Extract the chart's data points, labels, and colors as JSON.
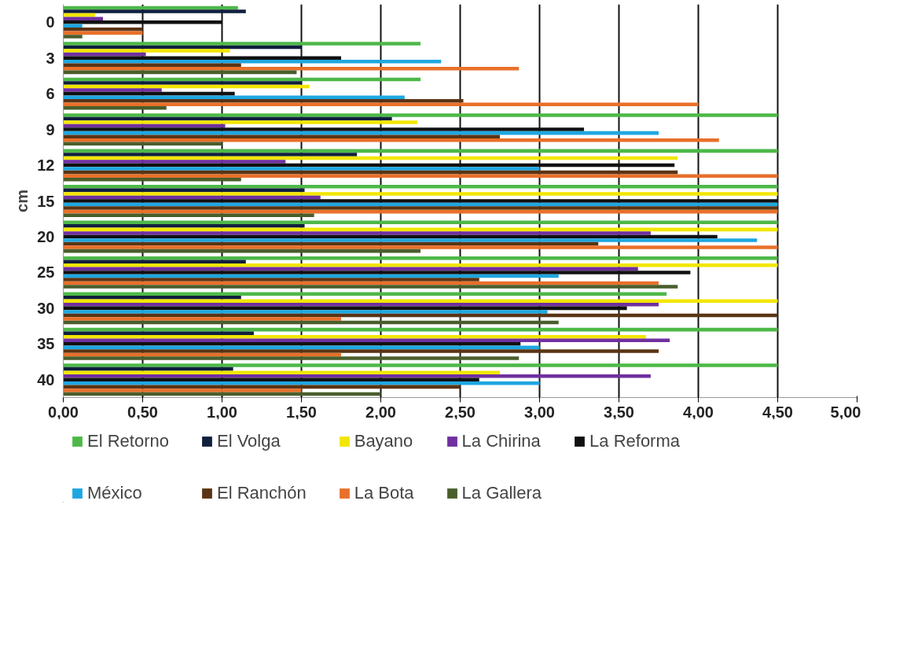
{
  "chart_data": {
    "type": "bar",
    "orientation": "horizontal",
    "ylabel": "cm",
    "categories": [
      "0",
      "3",
      "6",
      "9",
      "12",
      "15",
      "20",
      "25",
      "30",
      "35",
      "40"
    ],
    "series": [
      {
        "name": "El Retorno",
        "color": "#4db848",
        "values": [
          1.1,
          2.25,
          2.25,
          4.5,
          4.5,
          4.5,
          4.5,
          4.5,
          3.8,
          4.5,
          4.5
        ]
      },
      {
        "name": "El Volga",
        "color": "#0f1f3d",
        "values": [
          1.15,
          1.5,
          1.5,
          2.07,
          1.85,
          1.52,
          1.52,
          1.15,
          1.12,
          1.2,
          1.07
        ]
      },
      {
        "name": "Bayano",
        "color": "#f2e600",
        "values": [
          0.2,
          1.05,
          1.55,
          2.23,
          3.87,
          4.5,
          4.5,
          4.5,
          4.5,
          3.67,
          2.75
        ]
      },
      {
        "name": "La Chirina",
        "color": "#7030a0",
        "values": [
          0.25,
          0.52,
          0.62,
          1.02,
          1.4,
          1.62,
          3.7,
          3.62,
          3.75,
          3.82,
          3.7
        ]
      },
      {
        "name": "La Reforma",
        "color": "#111111",
        "values": [
          1.0,
          1.75,
          1.08,
          3.28,
          3.85,
          4.5,
          4.12,
          3.95,
          3.55,
          2.88,
          2.62
        ]
      },
      {
        "name": "México",
        "color": "#1ea7e1",
        "values": [
          0.12,
          2.38,
          2.15,
          3.75,
          3.0,
          4.5,
          4.37,
          3.12,
          3.05,
          3.0,
          3.0
        ]
      },
      {
        "name": "El Ranchón",
        "color": "#5a3415",
        "values": [
          0.5,
          1.12,
          2.52,
          2.75,
          3.87,
          4.5,
          3.37,
          2.62,
          4.5,
          3.75,
          2.5
        ]
      },
      {
        "name": "La Bota",
        "color": "#e8702a",
        "values": [
          0.5,
          2.87,
          4.0,
          4.13,
          4.5,
          4.5,
          4.5,
          3.75,
          1.75,
          1.75,
          1.5
        ]
      },
      {
        "name": "La Gallera",
        "color": "#4a5e2c",
        "values": [
          0.12,
          1.47,
          0.65,
          1.0,
          1.12,
          1.58,
          2.25,
          3.87,
          3.12,
          2.87,
          2.0
        ]
      }
    ],
    "xlim": [
      0,
      5
    ],
    "xticks": [
      {
        "value": 0,
        "label": "0,00"
      },
      {
        "value": 0.5,
        "label": "0,50"
      },
      {
        "value": 1,
        "label": "1,00"
      },
      {
        "value": 1.5,
        "label": "1,50"
      },
      {
        "value": 2,
        "label": "2,00"
      },
      {
        "value": 2.5,
        "label": "2,50"
      },
      {
        "value": 3,
        "label": "3,00"
      },
      {
        "value": 3.5,
        "label": "3,50"
      },
      {
        "value": 4,
        "label": "4,00"
      },
      {
        "value": 4.5,
        "label": "4,50"
      },
      {
        "value": 5,
        "label": "5,00"
      }
    ],
    "grid": "x",
    "legend": "bottom"
  }
}
